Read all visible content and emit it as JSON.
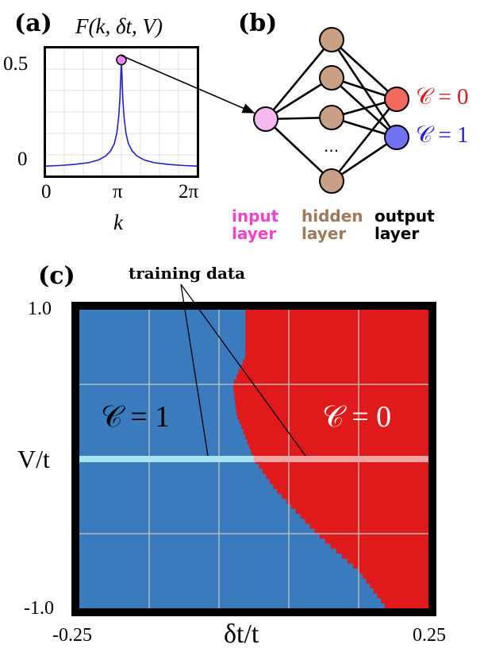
{
  "panel_a": {
    "label": "(a)",
    "title": "F(k, δt, V)",
    "y_ticks": [
      "0.5",
      "0"
    ],
    "x_ticks": [
      "0",
      "π",
      "2π"
    ],
    "xlabel": "k",
    "chart_data": {
      "type": "line",
      "title": "F(k, δt, V)",
      "xlabel": "k",
      "ylabel": "",
      "x_tick_labels": [
        "0",
        "π",
        "2π"
      ],
      "y_tick_labels": [
        "0",
        "0.5"
      ],
      "xlim": [
        0,
        6.283
      ],
      "ylim": [
        -0.05,
        0.58
      ],
      "series": [
        {
          "color": "#1f1fd0",
          "x": [
            0,
            0.6,
            1.2,
            1.8,
            2.2,
            2.5,
            2.7,
            2.85,
            2.95,
            3.03,
            3.08,
            3.1416,
            3.2,
            3.25,
            3.33,
            3.43,
            3.58,
            3.78,
            4.08,
            4.48,
            5.08,
            5.68,
            6.283
          ],
          "y": [
            0.0,
            0.003,
            0.008,
            0.017,
            0.03,
            0.05,
            0.075,
            0.11,
            0.16,
            0.24,
            0.33,
            0.52,
            0.33,
            0.24,
            0.16,
            0.11,
            0.075,
            0.05,
            0.03,
            0.017,
            0.008,
            0.003,
            0.0
          ]
        }
      ],
      "highlight_point": {
        "x": 3.1416,
        "y": 0.52,
        "color": "#ee88ee"
      },
      "grid": true
    }
  },
  "panel_b": {
    "label": "(b)",
    "ellipsis": "...",
    "output_labels": [
      "𝒞 = 0",
      "𝒞 = 1"
    ],
    "output_colors": [
      "#d81b1b",
      "#2222cc"
    ],
    "layers": [
      {
        "name": "input-layer",
        "line1": "input",
        "line2": "layer",
        "color": "#ee44cc",
        "node_color": "#f5b8ef"
      },
      {
        "name": "hidden-layer",
        "line1": "hidden",
        "line2": "layer",
        "color": "#a0785a",
        "node_color": "#c8a084"
      },
      {
        "name": "output-layer",
        "line1": "output",
        "line2": "layer",
        "color": "#000000",
        "node_colors": [
          "#f26a5e",
          "#6f73f4"
        ]
      }
    ]
  },
  "panel_c": {
    "label": "(c)",
    "annotation": "training data",
    "ylabel": "V/t",
    "xlabel": "δt/t",
    "y_ticks": [
      "1.0",
      "-1.0"
    ],
    "x_ticks": [
      "-0.25",
      "0.25"
    ],
    "region_labels": [
      "𝒞 = 1",
      "𝒞 = 0"
    ],
    "chart_data": {
      "type": "heatmap",
      "xlabel": "δt/t",
      "ylabel": "V/t",
      "xlim": [
        -0.25,
        0.25
      ],
      "ylim": [
        -1.0,
        1.0
      ],
      "colors": {
        "C1": "#3a7bbd",
        "C0": "#e01a1a",
        "train_C1": "#a8e4f0",
        "train_C0": "#f3a3a3"
      },
      "boundary": {
        "description": "phase boundary between C=1 (left) and C=0 (right), as (δt/t, V/t)",
        "points": [
          [
            -0.012,
            1.0
          ],
          [
            -0.012,
            0.69
          ],
          [
            -0.03,
            0.5
          ],
          [
            -0.025,
            0.3
          ],
          [
            0.0,
            0.0
          ],
          [
            0.03,
            -0.2
          ],
          [
            0.09,
            -0.5
          ],
          [
            0.15,
            -0.75
          ],
          [
            0.19,
            -1.0
          ]
        ]
      },
      "training_line": {
        "V": 0.0,
        "split_x": 0.0
      },
      "grid": true
    }
  }
}
